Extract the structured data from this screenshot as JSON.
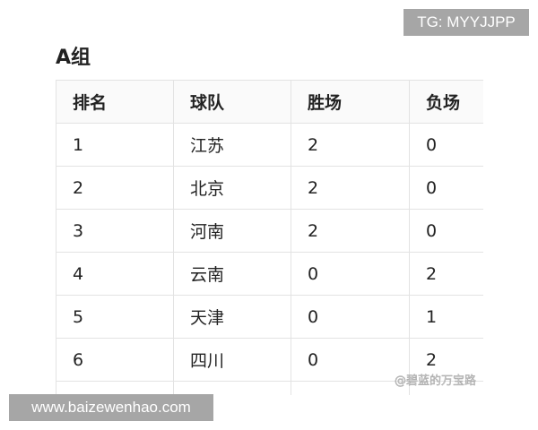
{
  "title": "A组",
  "table": {
    "headers": [
      "排名",
      "球队",
      "胜场",
      "负场"
    ],
    "rows": [
      [
        "1",
        "江苏",
        "2",
        "0"
      ],
      [
        "2",
        "北京",
        "2",
        "0"
      ],
      [
        "3",
        "河南",
        "2",
        "0"
      ],
      [
        "4",
        "云南",
        "0",
        "2"
      ],
      [
        "5",
        "天津",
        "0",
        "1"
      ],
      [
        "6",
        "四川",
        "0",
        "2"
      ],
      [
        "",
        "",
        "",
        ""
      ]
    ]
  },
  "watermarks": {
    "tg": "TG: MYYJJPP",
    "site": "www.baizewenhao.com",
    "social": "@碧蓝的万宝路"
  }
}
